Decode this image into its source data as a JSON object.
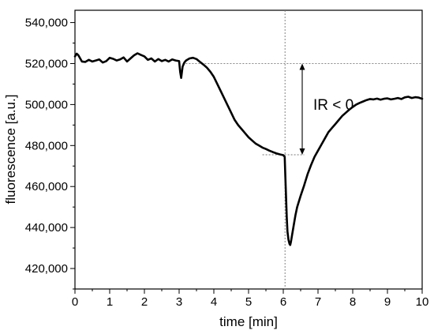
{
  "chart_data": {
    "type": "line",
    "title": "",
    "xlabel": "time [min]",
    "ylabel": "fluorescence [a.u.]",
    "xlim": [
      0,
      10
    ],
    "ylim": [
      410000,
      546000
    ],
    "x_ticks": [
      0,
      1,
      2,
      3,
      4,
      5,
      6,
      7,
      8,
      9,
      10
    ],
    "x_tick_labels": [
      "0",
      "1",
      "2",
      "3",
      "4",
      "5",
      "6",
      "7",
      "8",
      "9",
      "10"
    ],
    "y_ticks": [
      420000,
      440000,
      460000,
      480000,
      500000,
      520000,
      540000
    ],
    "y_tick_labels": [
      "420,000",
      "440,000",
      "460,000",
      "480,000",
      "500,000",
      "520,000",
      "540,000"
    ],
    "grid": false,
    "legend": "none",
    "annotation_text": "IR < 0",
    "reference_lines": {
      "vertical_x": 6.05,
      "upper_level": 520000,
      "lower_level": 475500
    },
    "series": [
      {
        "color": "#000000",
        "x": [
          0,
          0.05,
          0.1,
          0.15,
          0.2,
          0.3,
          0.4,
          0.5,
          0.6,
          0.7,
          0.8,
          0.9,
          1.0,
          1.1,
          1.2,
          1.3,
          1.4,
          1.5,
          1.6,
          1.7,
          1.8,
          1.9,
          2.0,
          2.1,
          2.2,
          2.3,
          2.4,
          2.5,
          2.6,
          2.7,
          2.8,
          2.9,
          3.0,
          3.03,
          3.06,
          3.1,
          3.15,
          3.2,
          3.3,
          3.4,
          3.5,
          3.6,
          3.7,
          3.8,
          3.9,
          4.0,
          4.1,
          4.2,
          4.3,
          4.4,
          4.5,
          4.6,
          4.7,
          4.8,
          4.9,
          5.0,
          5.1,
          5.2,
          5.3,
          5.4,
          5.5,
          5.6,
          5.7,
          5.8,
          5.9,
          6.0,
          6.04,
          6.06,
          6.08,
          6.1,
          6.12,
          6.15,
          6.18,
          6.2,
          6.22,
          6.25,
          6.3,
          6.35,
          6.4,
          6.5,
          6.6,
          6.7,
          6.8,
          6.9,
          7.0,
          7.1,
          7.2,
          7.3,
          7.4,
          7.5,
          7.6,
          7.7,
          7.8,
          7.9,
          8.0,
          8.1,
          8.2,
          8.3,
          8.4,
          8.5,
          8.6,
          8.7,
          8.8,
          8.9,
          9.0,
          9.1,
          9.2,
          9.3,
          9.4,
          9.5,
          9.6,
          9.7,
          9.8,
          9.9,
          10.0
        ],
        "y": [
          523500,
          524800,
          524000,
          522500,
          521000,
          520800,
          521800,
          521000,
          521500,
          522000,
          520500,
          521200,
          522800,
          522300,
          521500,
          522000,
          523000,
          521000,
          522500,
          524000,
          525000,
          524200,
          523500,
          521800,
          522500,
          521000,
          522200,
          521200,
          521800,
          521000,
          522000,
          521500,
          521200,
          516000,
          513000,
          518500,
          520500,
          521500,
          522500,
          522800,
          522200,
          520800,
          519500,
          518000,
          516000,
          513500,
          510000,
          506500,
          503000,
          499500,
          496000,
          492500,
          490000,
          488000,
          486000,
          484000,
          482500,
          481000,
          480000,
          479000,
          478300,
          477500,
          476800,
          476200,
          475700,
          475300,
          474500,
          465000,
          455000,
          445000,
          438000,
          434000,
          432000,
          431500,
          433000,
          436000,
          441000,
          446000,
          450000,
          455500,
          460500,
          466000,
          470500,
          474500,
          477500,
          480500,
          483500,
          486500,
          488500,
          490500,
          492500,
          494500,
          496000,
          497500,
          498800,
          500000,
          500800,
          501500,
          502200,
          502700,
          502500,
          502900,
          502400,
          502800,
          503000,
          502500,
          502800,
          503200,
          502700,
          503500,
          503800,
          503200,
          503600,
          503400,
          502800
        ]
      }
    ]
  }
}
